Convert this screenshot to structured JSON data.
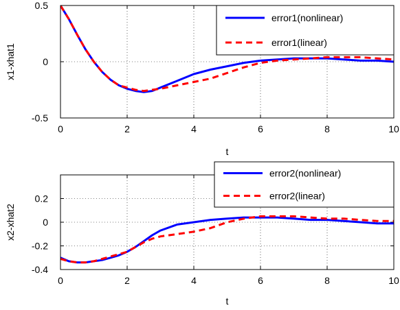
{
  "chart_data": [
    {
      "type": "line",
      "xlabel": "t",
      "ylabel": "x1-xhat1",
      "xlim": [
        0,
        10
      ],
      "ylim": [
        -0.5,
        0.5
      ],
      "xticks": [
        0,
        2,
        4,
        6,
        8,
        10
      ],
      "yticks": [
        0.5,
        0,
        -0.5
      ],
      "ytick_labels": [
        "0.5",
        "0",
        "-0.5"
      ],
      "grid": "dotted",
      "legend_position": "top-right",
      "series": [
        {
          "name": "error1(nonlinear)",
          "color": "#0000ff",
          "style": "solid",
          "x": [
            0,
            0.25,
            0.5,
            0.75,
            1.0,
            1.25,
            1.5,
            1.75,
            2.0,
            2.25,
            2.5,
            2.75,
            3.0,
            3.5,
            4.0,
            4.5,
            5.0,
            5.5,
            6.0,
            6.5,
            7.0,
            7.5,
            8.0,
            8.5,
            9.0,
            9.5,
            10.0
          ],
          "y": [
            0.5,
            0.38,
            0.24,
            0.11,
            0.0,
            -0.09,
            -0.16,
            -0.21,
            -0.24,
            -0.26,
            -0.27,
            -0.26,
            -0.23,
            -0.17,
            -0.11,
            -0.07,
            -0.04,
            -0.01,
            0.01,
            0.02,
            0.03,
            0.03,
            0.03,
            0.02,
            0.01,
            0.01,
            0.0
          ]
        },
        {
          "name": "error1(linear)",
          "color": "#ff0000",
          "style": "dashed",
          "x": [
            0,
            0.25,
            0.5,
            0.75,
            1.0,
            1.25,
            1.5,
            1.75,
            2.0,
            2.25,
            2.5,
            2.75,
            3.0,
            3.5,
            4.0,
            4.5,
            5.0,
            5.5,
            6.0,
            6.5,
            7.0,
            7.5,
            8.0,
            8.5,
            9.0,
            9.5,
            10.0
          ],
          "y": [
            0.5,
            0.38,
            0.24,
            0.11,
            0.0,
            -0.09,
            -0.16,
            -0.21,
            -0.23,
            -0.25,
            -0.26,
            -0.25,
            -0.24,
            -0.21,
            -0.18,
            -0.15,
            -0.1,
            -0.05,
            -0.01,
            0.01,
            0.02,
            0.03,
            0.04,
            0.04,
            0.04,
            0.03,
            0.02
          ]
        }
      ]
    },
    {
      "type": "line",
      "xlabel": "t",
      "ylabel": "x2-xhat2",
      "xlim": [
        0,
        10
      ],
      "ylim": [
        -0.4,
        0.4
      ],
      "xticks": [
        0,
        2,
        4,
        6,
        8,
        10
      ],
      "yticks": [
        0.2,
        0,
        -0.2,
        -0.4
      ],
      "ytick_labels": [
        "0.2",
        "0",
        "-0.2",
        "-0.4"
      ],
      "grid": "dotted",
      "legend_position": "top-right",
      "series": [
        {
          "name": "error2(nonlinear)",
          "color": "#0000ff",
          "style": "solid",
          "x": [
            0,
            0.25,
            0.5,
            0.75,
            1.0,
            1.25,
            1.5,
            1.75,
            2.0,
            2.25,
            2.5,
            2.75,
            3.0,
            3.5,
            4.0,
            4.5,
            5.0,
            5.5,
            6.0,
            6.5,
            7.0,
            7.5,
            8.0,
            8.5,
            9.0,
            9.5,
            10.0
          ],
          "y": [
            -0.3,
            -0.33,
            -0.34,
            -0.34,
            -0.33,
            -0.32,
            -0.3,
            -0.28,
            -0.25,
            -0.21,
            -0.16,
            -0.11,
            -0.07,
            -0.02,
            0.0,
            0.02,
            0.03,
            0.04,
            0.04,
            0.04,
            0.03,
            0.02,
            0.02,
            0.01,
            0.0,
            -0.01,
            -0.01
          ]
        },
        {
          "name": "error2(linear)",
          "color": "#ff0000",
          "style": "dashed",
          "x": [
            0,
            0.25,
            0.5,
            0.75,
            1.0,
            1.25,
            1.5,
            1.75,
            2.0,
            2.25,
            2.5,
            2.75,
            3.0,
            3.5,
            4.0,
            4.5,
            5.0,
            5.5,
            6.0,
            6.5,
            7.0,
            7.5,
            8.0,
            8.5,
            9.0,
            9.5,
            10.0
          ],
          "y": [
            -0.31,
            -0.33,
            -0.34,
            -0.34,
            -0.33,
            -0.31,
            -0.29,
            -0.27,
            -0.25,
            -0.21,
            -0.17,
            -0.14,
            -0.12,
            -0.1,
            -0.08,
            -0.05,
            0.0,
            0.03,
            0.05,
            0.05,
            0.05,
            0.04,
            0.03,
            0.03,
            0.02,
            0.01,
            0.01
          ]
        }
      ]
    }
  ]
}
